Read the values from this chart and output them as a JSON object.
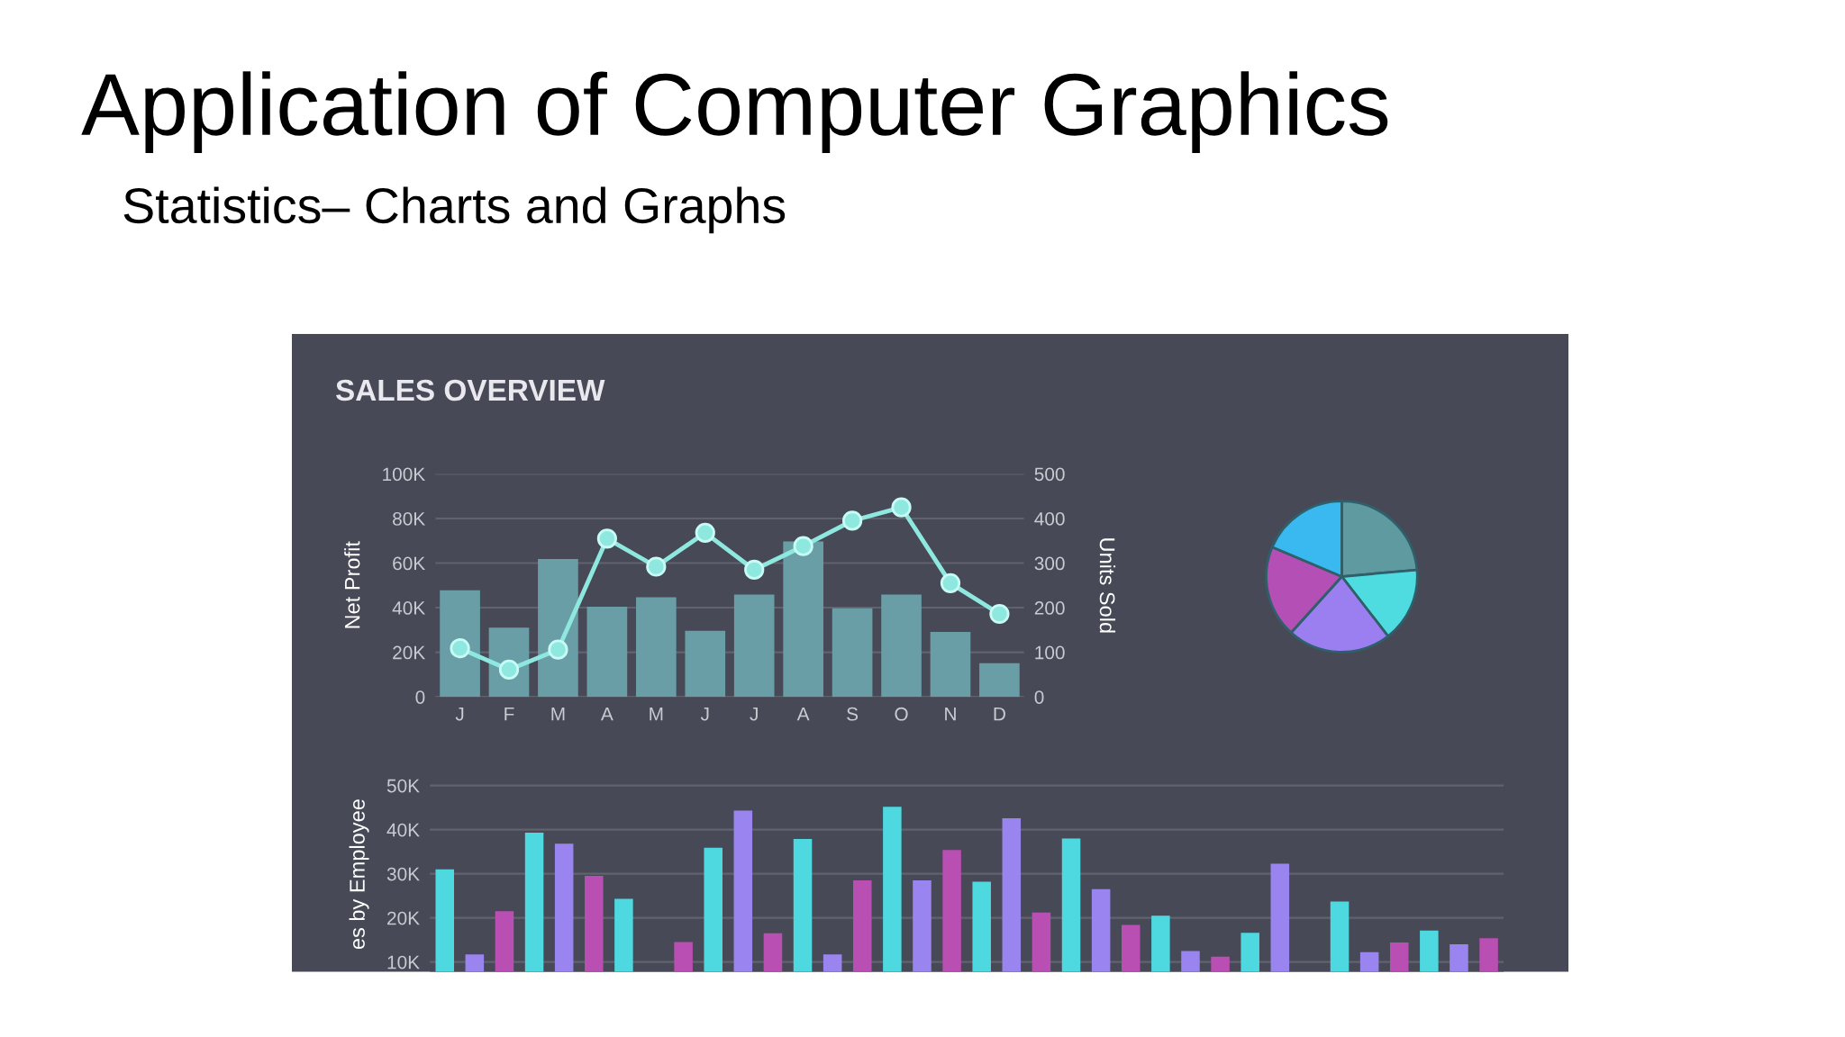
{
  "chart_data": [
    {
      "type": "bar",
      "title": "Application of Computer Graphics",
      "subtitle": "Statistics– Charts and Graphs",
      "annotations": [
        "SALES OVERVIEW"
      ],
      "ylabel": "Net Profit",
      "y2label": "Units Sold",
      "categories": [
        "J",
        "F",
        "M",
        "A",
        "M",
        "J",
        "J",
        "A",
        "S",
        "O",
        "N",
        "D"
      ],
      "series": [
        {
          "color": "#6a9ea6",
          "values": [
            47800,
            31000,
            61800,
            40400,
            44700,
            29600,
            45900,
            69700,
            39700,
            45900,
            29100,
            15100
          ]
        },
        {
          "type": "line",
          "axis": "y2",
          "color": "#8fe8e0",
          "values": [
            109,
            61,
            106,
            355,
            292,
            368,
            285,
            338,
            395,
            425,
            255,
            186
          ]
        }
      ],
      "ylim": [
        0,
        100000
      ],
      "yticks": [
        0,
        {
          "value": 20000,
          "label": "20K"
        },
        {
          "value": 40000,
          "label": "40K"
        },
        {
          "value": 60000,
          "label": "60K"
        },
        {
          "value": 80000,
          "label": "80K"
        },
        {
          "value": 100000,
          "label": "100K"
        }
      ],
      "y2lim": [
        0,
        500
      ],
      "y2ticks": [
        0,
        100,
        200,
        300,
        400,
        500
      ],
      "grid": "y",
      "marker": "circle",
      "line_style": "solid",
      "legend": false
    },
    {
      "type": "pie",
      "categories": [
        null,
        null,
        null,
        null,
        null
      ],
      "values": [
        23.6,
        15.9,
        22.2,
        19.7,
        18.6
      ],
      "colors": [
        "#5f9aa0",
        "#4fdce0",
        "#9b7ef0",
        "#b44fb6",
        "#3ab8f0"
      ],
      "legend": false
    },
    {
      "type": "bar",
      "ylabel": "es by Employee",
      "categories": [
        null,
        null,
        null,
        null,
        null,
        null,
        null,
        null,
        null,
        null,
        null,
        null,
        null,
        null,
        null,
        null,
        null,
        null,
        null,
        null,
        null,
        null,
        null,
        null,
        null,
        null,
        null,
        null,
        null,
        null,
        null,
        null,
        null,
        null,
        null,
        null
      ],
      "values": [
        31000,
        11700,
        21500,
        39300,
        36800,
        29500,
        24300,
        null,
        14500,
        35900,
        44300,
        16500,
        37900,
        11700,
        28500,
        45200,
        28500,
        35400,
        28200,
        42600,
        21200,
        38000,
        26500,
        18400,
        20500,
        12500,
        11200,
        16600,
        32300,
        null,
        23700,
        12200,
        14400,
        17100,
        14000,
        15400
      ],
      "colors": [
        "#4ed8e0",
        "#9a85f0",
        "#b94fb2",
        "#4ed8e0",
        "#9a85f0",
        "#b94fb2",
        "#4ed8e0",
        "#9a85f0",
        "#b94fb2",
        "#4ed8e0",
        "#9a85f0",
        "#b94fb2",
        "#4ed8e0",
        "#9a85f0",
        "#b94fb2",
        "#4ed8e0",
        "#9a85f0",
        "#b94fb2",
        "#4ed8e0",
        "#9a85f0",
        "#b94fb2",
        "#4ed8e0",
        "#9a85f0",
        "#b94fb2",
        "#4ed8e0",
        "#9a85f0",
        "#b94fb2",
        "#4ed8e0",
        "#9a85f0",
        "#b94fb2",
        "#4ed8e0",
        "#9a85f0",
        "#b94fb2",
        "#4ed8e0",
        "#9a85f0",
        "#b94fb2"
      ],
      "ylim": [
        7800,
        52000
      ],
      "yticks": [
        {
          "value": 10000,
          "label": "10K"
        },
        {
          "value": 20000,
          "label": "20K"
        },
        {
          "value": 30000,
          "label": "30K"
        },
        {
          "value": 40000,
          "label": "40K"
        },
        {
          "value": 50000,
          "label": "50K"
        }
      ],
      "grid": "y",
      "tick_labels": "y",
      "legend": false
    }
  ]
}
